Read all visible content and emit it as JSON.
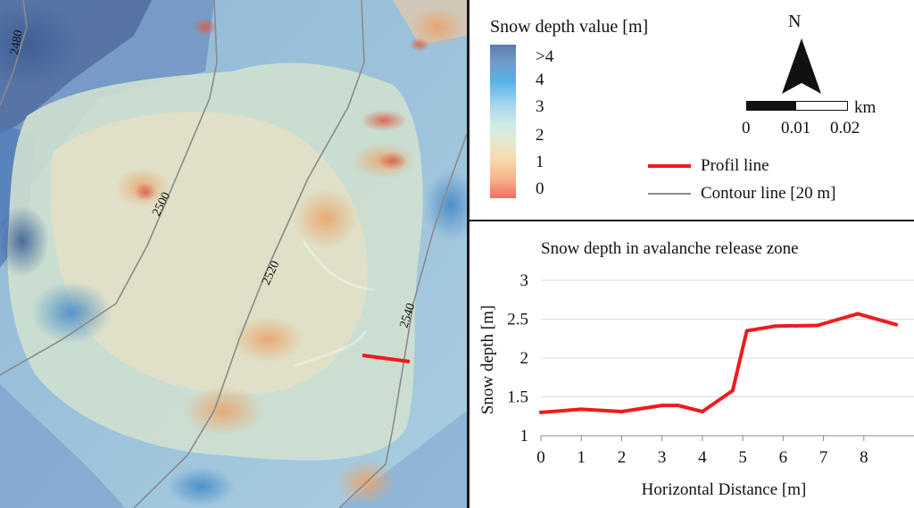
{
  "map": {
    "contour_labels": [
      "2480",
      "2500",
      "2520",
      "2540"
    ],
    "colors": {
      "profile_line": "#ee1c1c",
      "contour_line": "#8a8a8a"
    }
  },
  "legend": {
    "title": "Snow depth value [m]",
    "colorbar_ticks": [
      ">4",
      "4",
      "3",
      "2",
      "1",
      "0"
    ],
    "north": "N",
    "scale_unit": "km",
    "scale_ticks": [
      "0",
      "0.01",
      "0.02"
    ],
    "items": [
      {
        "label": "Profil line",
        "icon": "red-line"
      },
      {
        "label": "Contour line [20 m]",
        "icon": "gray-line"
      }
    ]
  },
  "chart_data": {
    "type": "line",
    "title": "Snow depth in avalanche release zone",
    "xlabel": "Horizontal Distance [m]",
    "ylabel": "Snow depth [m]",
    "xlim": [
      0,
      8.8
    ],
    "ylim": [
      1,
      3
    ],
    "xticks": [
      0,
      1,
      2,
      3,
      4,
      5,
      6,
      7,
      8
    ],
    "yticks": [
      1,
      1.5,
      2,
      2.5,
      3
    ],
    "ytick_labels": [
      "1",
      "1.5",
      "2",
      "2.5",
      "3"
    ],
    "grid": "horizontal",
    "series": [
      {
        "color": "#ee1c1c",
        "x": [
          0,
          1,
          2,
          3,
          3.4,
          4,
          4.75,
          5.1,
          5.8,
          6.85,
          7.85,
          8.8
        ],
        "y": [
          1.3,
          1.34,
          1.31,
          1.39,
          1.39,
          1.31,
          1.58,
          2.35,
          2.41,
          2.42,
          2.57,
          2.43
        ]
      }
    ]
  }
}
